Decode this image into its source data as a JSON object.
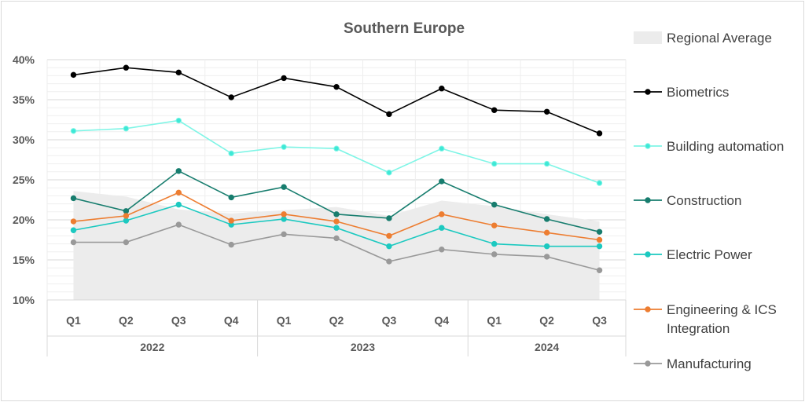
{
  "chart_data": {
    "type": "line",
    "title": "Southern Europe",
    "categories": [
      "Q1",
      "Q2",
      "Q3",
      "Q4",
      "Q1",
      "Q2",
      "Q3",
      "Q4",
      "Q1",
      "Q2",
      "Q3"
    ],
    "groups": [
      {
        "label": "2022",
        "count": 4
      },
      {
        "label": "2023",
        "count": 4
      },
      {
        "label": "2024",
        "count": 3
      }
    ],
    "ylim": [
      10,
      40
    ],
    "yticks": [
      10,
      15,
      20,
      25,
      30,
      35,
      40
    ],
    "ytick_labels": [
      "10%",
      "15%",
      "20%",
      "25%",
      "30%",
      "35%",
      "40%"
    ],
    "area": {
      "name": "Regional Average",
      "color": "#ececec",
      "values": [
        23.6,
        22.9,
        21.3,
        20.8,
        21.2,
        21.6,
        20.5,
        22.4,
        21.7,
        20.7,
        19.8
      ]
    },
    "series": [
      {
        "name": "Biometrics",
        "color": "#000000",
        "values": [
          38.1,
          39.0,
          38.4,
          35.3,
          37.7,
          36.6,
          33.2,
          36.4,
          33.7,
          33.5,
          30.8
        ]
      },
      {
        "name": "Building automation",
        "color": "#7ff5e6",
        "marker_fill": "#3ee8d6",
        "values": [
          31.1,
          31.4,
          32.4,
          28.3,
          29.1,
          28.9,
          25.9,
          28.9,
          27.0,
          27.0,
          24.6
        ]
      },
      {
        "name": "Construction",
        "color": "#177d6e",
        "values": [
          22.7,
          21.1,
          26.1,
          22.8,
          24.1,
          20.7,
          20.2,
          24.8,
          21.9,
          20.1,
          18.5
        ]
      },
      {
        "name": "Electric Power",
        "color": "#1cc9c0",
        "values": [
          18.7,
          19.9,
          21.9,
          19.4,
          20.1,
          19.0,
          16.7,
          19.0,
          17.0,
          16.7,
          16.7
        ]
      },
      {
        "name": "Engineering & ICS Integration",
        "name_lines": [
          "Engineering & ICS",
          "Integration"
        ],
        "color": "#ed7d31",
        "values": [
          19.8,
          20.5,
          23.4,
          19.9,
          20.7,
          19.8,
          18.0,
          20.7,
          19.3,
          18.4,
          17.5
        ]
      },
      {
        "name": "Manufacturing",
        "color": "#999999",
        "values": [
          17.2,
          17.2,
          19.4,
          16.9,
          18.2,
          17.7,
          14.8,
          16.3,
          15.7,
          15.4,
          13.7
        ]
      }
    ],
    "legend_position": "right"
  }
}
